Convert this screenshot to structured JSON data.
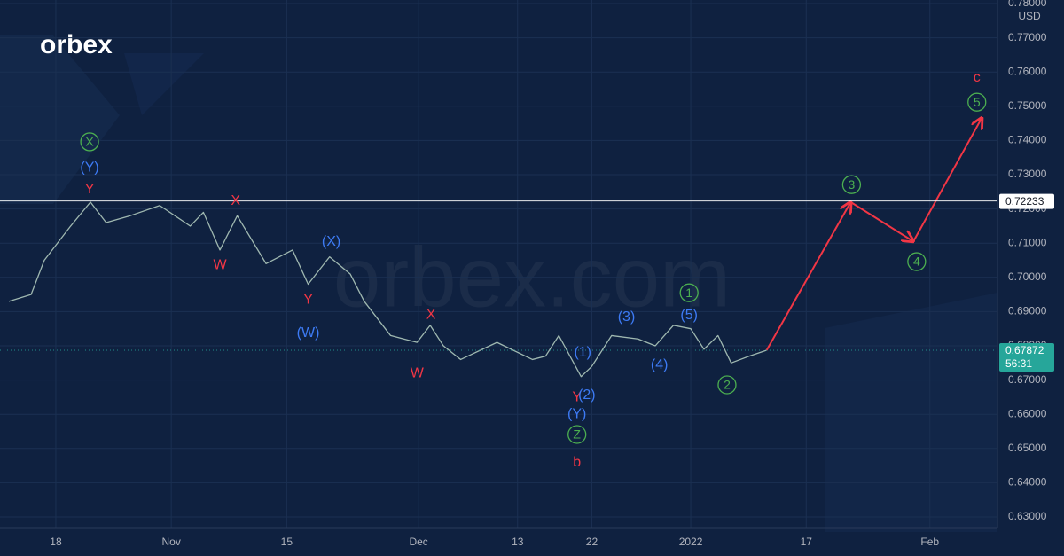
{
  "chart_data": {
    "type": "line",
    "logo": "orbex",
    "watermark": "orbex.com",
    "currency": "USD",
    "xlim": [
      -6.77,
      114.2
    ],
    "xticks": [
      {
        "value": 0,
        "label": "18"
      },
      {
        "value": 14,
        "label": "Nov"
      },
      {
        "value": 28,
        "label": "15"
      },
      {
        "value": 44,
        "label": "Dec"
      },
      {
        "value": 56,
        "label": "13"
      },
      {
        "value": 65,
        "label": "22"
      },
      {
        "value": 77,
        "label": "2022"
      },
      {
        "value": 91,
        "label": "17"
      },
      {
        "value": 106,
        "label": "Feb"
      }
    ],
    "ylim": [
      0.63,
      0.78
    ],
    "yticks": [
      {
        "value": 0.63,
        "label": "0.63000"
      },
      {
        "value": 0.64,
        "label": "0.64000"
      },
      {
        "value": 0.65,
        "label": "0.65000"
      },
      {
        "value": 0.66,
        "label": "0.66000"
      },
      {
        "value": 0.67,
        "label": "0.67000"
      },
      {
        "value": 0.68,
        "label": "0.68000"
      },
      {
        "value": 0.69,
        "label": "0.69000"
      },
      {
        "value": 0.7,
        "label": "0.70000"
      },
      {
        "value": 0.71,
        "label": "0.71000"
      },
      {
        "value": 0.72,
        "label": "0.72000"
      },
      {
        "value": 0.73,
        "label": "0.73000"
      },
      {
        "value": 0.74,
        "label": "0.74000"
      },
      {
        "value": 0.75,
        "label": "0.75000"
      },
      {
        "value": 0.76,
        "label": "0.76000"
      },
      {
        "value": 0.77,
        "label": "0.77000"
      },
      {
        "value": 0.78,
        "label": "0.78000"
      }
    ],
    "grid": true,
    "series": [
      {
        "color": "#9fb8b0",
        "x": [
          -5.7,
          -3,
          -1.4,
          1.8,
          4.2,
          6.1,
          9,
          12.6,
          16.3,
          17.9,
          19.9,
          22,
          25.5,
          28.7,
          30.6,
          33.2,
          35.7,
          37.4,
          40.6,
          43.8,
          45.4,
          47,
          49.1,
          53.5,
          57.8,
          59.4,
          61,
          63.7,
          65,
          67.4,
          70.6,
          72.7,
          74.9,
          77,
          78.6,
          80.3,
          81.9,
          84.1,
          86.2
        ],
        "values": [
          0.693,
          0.695,
          0.705,
          0.715,
          0.722,
          0.716,
          0.718,
          0.721,
          0.715,
          0.719,
          0.708,
          0.718,
          0.704,
          0.708,
          0.698,
          0.706,
          0.701,
          0.693,
          0.683,
          0.681,
          0.686,
          0.68,
          0.676,
          0.681,
          0.676,
          0.677,
          0.683,
          0.671,
          0.674,
          0.683,
          0.682,
          0.68,
          0.686,
          0.685,
          0.679,
          0.683,
          0.675,
          0.677,
          0.6787
        ]
      },
      {
        "color": "#f23645",
        "forecast": true,
        "x": [
          86.2,
          96.4,
          104,
          112.3
        ],
        "values": [
          0.6787,
          0.722,
          0.7105,
          0.7466
        ]
      }
    ],
    "levels": [
      {
        "value": 0.72233,
        "label": "0.72233",
        "color": "#ffffff",
        "style": "solid"
      },
      {
        "value": 0.67872,
        "label": "0.67872",
        "timer": "56:31",
        "color": "#26a69a",
        "style": "dotted"
      }
    ],
    "annotations": [
      {
        "text": "X",
        "x": 4.1,
        "y": 0.7396,
        "color": "#4caf50",
        "circled": true
      },
      {
        "text": "(Y)",
        "x": 4.1,
        "y": 0.7323,
        "color": "#3d7bf5"
      },
      {
        "text": "Y",
        "x": 4.1,
        "y": 0.7259,
        "color": "#f23645"
      },
      {
        "text": "X",
        "x": 21.8,
        "y": 0.7225,
        "color": "#f23645"
      },
      {
        "text": "W",
        "x": 19.9,
        "y": 0.7038,
        "color": "#f23645"
      },
      {
        "text": "(X)",
        "x": 33.4,
        "y": 0.7106,
        "color": "#3d7bf5"
      },
      {
        "text": "Y",
        "x": 30.6,
        "y": 0.6937,
        "color": "#f23645"
      },
      {
        "text": "(W)",
        "x": 30.6,
        "y": 0.6839,
        "color": "#3d7bf5"
      },
      {
        "text": "X",
        "x": 45.5,
        "y": 0.6893,
        "color": "#f23645"
      },
      {
        "text": "W",
        "x": 43.8,
        "y": 0.6722,
        "color": "#f23645"
      },
      {
        "text": "(1)",
        "x": 63.9,
        "y": 0.6782,
        "color": "#3d7bf5"
      },
      {
        "text": "Y",
        "x": 63.2,
        "y": 0.6652,
        "color": "#f23645"
      },
      {
        "text": "(2)",
        "x": 64.4,
        "y": 0.6658,
        "color": "#3d7bf5"
      },
      {
        "text": "(Y)",
        "x": 63.2,
        "y": 0.6603,
        "color": "#3d7bf5"
      },
      {
        "text": "Z",
        "x": 63.2,
        "y": 0.6541,
        "color": "#4caf50",
        "circled": true
      },
      {
        "text": "b",
        "x": 63.2,
        "y": 0.6461,
        "color": "#f23645"
      },
      {
        "text": "(3)",
        "x": 69.2,
        "y": 0.6886,
        "color": "#3d7bf5"
      },
      {
        "text": "(4)",
        "x": 73.2,
        "y": 0.6746,
        "color": "#3d7bf5"
      },
      {
        "text": "(5)",
        "x": 76.8,
        "y": 0.6891,
        "color": "#3d7bf5"
      },
      {
        "text": "1",
        "x": 76.8,
        "y": 0.6955,
        "color": "#4caf50",
        "circled": true
      },
      {
        "text": "2",
        "x": 81.4,
        "y": 0.6686,
        "color": "#4caf50",
        "circled": true
      },
      {
        "text": "3",
        "x": 96.5,
        "y": 0.7271,
        "color": "#4caf50",
        "circled": true
      },
      {
        "text": "4",
        "x": 104.4,
        "y": 0.7046,
        "color": "#4caf50",
        "circled": true
      },
      {
        "text": "5",
        "x": 111.7,
        "y": 0.7512,
        "color": "#4caf50",
        "circled": true
      },
      {
        "text": "c",
        "x": 111.7,
        "y": 0.7585,
        "color": "#f23645"
      }
    ]
  }
}
